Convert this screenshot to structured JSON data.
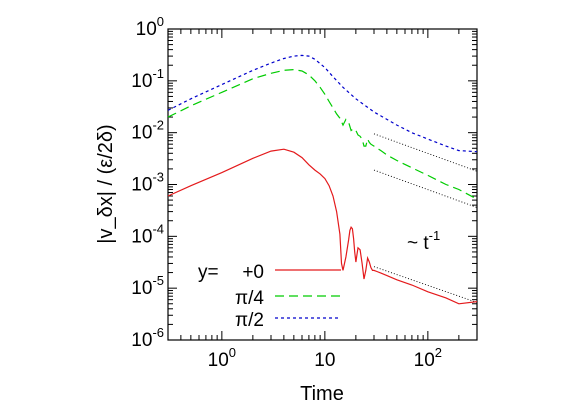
{
  "chart_data": {
    "type": "line",
    "title": "",
    "xlabel": "Time",
    "ylabel": "|v_δx| / (ε/2δ)",
    "x_scale": "log",
    "y_scale": "log",
    "xlim": [
      0.3,
      300
    ],
    "ylim": [
      1e-06,
      1
    ],
    "x_ticks": [
      {
        "value": 1,
        "base": "10",
        "exp": "0"
      },
      {
        "value": 10,
        "base": "10",
        "exp": ""
      },
      {
        "value": 100,
        "base": "10",
        "exp": "2"
      }
    ],
    "y_ticks": [
      {
        "value": 1,
        "base": "10",
        "exp": "0"
      },
      {
        "value": 0.1,
        "base": "10",
        "exp": "-1"
      },
      {
        "value": 0.01,
        "base": "10",
        "exp": "-2"
      },
      {
        "value": 0.001,
        "base": "10",
        "exp": "-3"
      },
      {
        "value": 0.0001,
        "base": "10",
        "exp": "-4"
      },
      {
        "value": 1e-05,
        "base": "10",
        "exp": "-5"
      },
      {
        "value": 1e-06,
        "base": "10",
        "exp": "-6"
      }
    ],
    "legend_title": "y=",
    "legend_position": "bottom-left",
    "series": [
      {
        "name": "+0",
        "color": "#e41a1c",
        "dash": "solid",
        "x": [
          0.3,
          0.5,
          1,
          2,
          3,
          4,
          5,
          6,
          7,
          8,
          9,
          10,
          11,
          12,
          13,
          14,
          14.5,
          15,
          16,
          17,
          17.5,
          18,
          18.5,
          19,
          19.5,
          20,
          20.5,
          21,
          22,
          23,
          24,
          25,
          26,
          27,
          28,
          29,
          30,
          32,
          35,
          40,
          50,
          70,
          100,
          150,
          200,
          300
        ],
        "y": [
          0.0006,
          0.00095,
          0.0017,
          0.0032,
          0.0044,
          0.0048,
          0.0042,
          0.0033,
          0.0024,
          0.0019,
          0.0016,
          0.0013,
          0.00095,
          0.0006,
          0.0003,
          0.00011,
          3e-05,
          2.2e-05,
          4e-05,
          8.5e-05,
          0.00013,
          0.00015,
          0.00014,
          9e-05,
          5e-05,
          3.2e-05,
          4.5e-05,
          6e-05,
          5.5e-05,
          3e-05,
          1.5e-05,
          2.2e-05,
          3.8e-05,
          3.2e-05,
          2.5e-05,
          2.2e-05,
          2.2e-05,
          2.1e-05,
          1.95e-05,
          1.75e-05,
          1.45e-05,
          1.15e-05,
          8.5e-06,
          6.5e-06,
          5e-06,
          5.5e-06
        ]
      },
      {
        "name": "π/4",
        "color": "#00cc00",
        "dash": "long",
        "x": [
          0.3,
          0.5,
          1,
          2,
          3,
          4,
          5,
          6,
          7,
          8,
          9,
          10,
          11,
          12,
          13,
          14,
          15,
          16,
          17,
          18,
          19,
          20,
          21,
          22,
          23,
          24,
          25,
          26,
          27,
          28,
          30,
          35,
          40,
          50,
          70,
          100,
          150,
          200,
          300
        ],
        "y": [
          0.02,
          0.033,
          0.06,
          0.11,
          0.14,
          0.16,
          0.165,
          0.155,
          0.13,
          0.1,
          0.075,
          0.055,
          0.04,
          0.03,
          0.023,
          0.019,
          0.014,
          0.018,
          0.016,
          0.011,
          0.012,
          0.011,
          0.009,
          0.0085,
          0.0075,
          0.0055,
          0.0055,
          0.0075,
          0.0065,
          0.006,
          0.0055,
          0.0045,
          0.0037,
          0.0029,
          0.0021,
          0.0015,
          0.001,
          0.0008,
          0.00052
        ]
      },
      {
        "name": "π/2",
        "color": "#0000cc",
        "dash": "short",
        "x": [
          0.3,
          0.5,
          1,
          2,
          3,
          4,
          5,
          6,
          7,
          8,
          10,
          12,
          15,
          20,
          30,
          50,
          70,
          100,
          150,
          200,
          300
        ],
        "y": [
          0.027,
          0.045,
          0.085,
          0.16,
          0.22,
          0.27,
          0.3,
          0.31,
          0.3,
          0.26,
          0.18,
          0.12,
          0.075,
          0.045,
          0.025,
          0.014,
          0.01,
          0.0075,
          0.0055,
          0.0045,
          0.0043
        ]
      }
    ],
    "reference_lines": [
      {
        "x": [
          30,
          300
        ],
        "y": [
          0.0095,
          0.0018
        ]
      },
      {
        "x": [
          30,
          300
        ],
        "y": [
          0.0019,
          0.00036
        ]
      },
      {
        "x": [
          30,
          300
        ],
        "y": [
          2.6e-05,
          5.3e-06
        ]
      }
    ],
    "annotation": {
      "text": "~ t",
      "sup": "-1",
      "x": 150,
      "y": 0.00011
    }
  }
}
